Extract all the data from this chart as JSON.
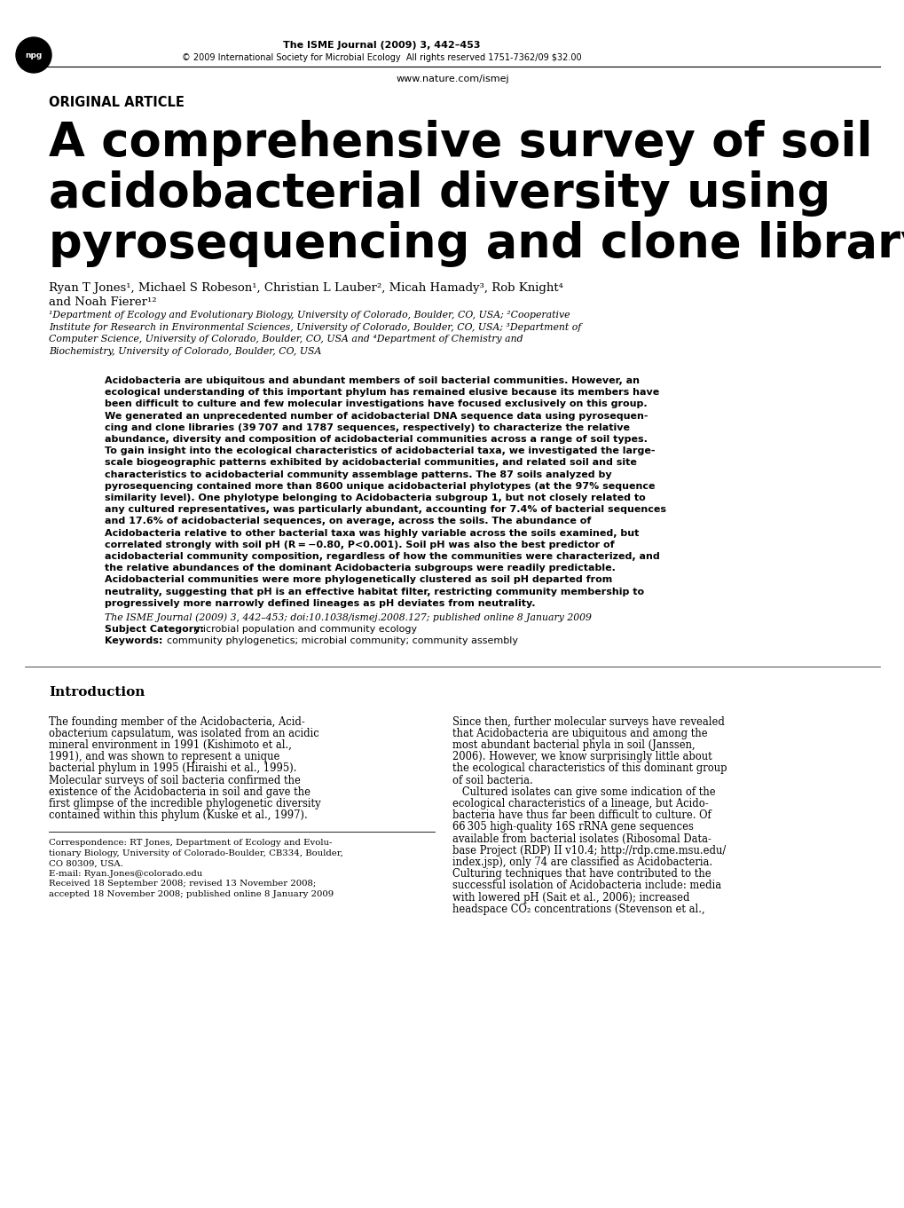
{
  "background_color": "#ffffff",
  "header_journal": "The ISME Journal (2009) 3, 442–453",
  "header_copyright": "© 2009 International Society for Microbial Ecology  All rights reserved 1751-7362/09 $32.00",
  "header_url": "www.nature.com/ismej",
  "section_label": "ORIGINAL ARTICLE",
  "title_line1": "A comprehensive survey of soil",
  "title_line2": "acidobacterial diversity using",
  "title_line3": "pyrosequencing and clone library analyses",
  "authors": "Ryan T Jones¹, Michael S Robeson¹, Christian L Lauber², Micah Hamady³, Rob Knight⁴",
  "authors2": "and Noah Fierer¹²",
  "affil_lines": [
    "¹Department of Ecology and Evolutionary Biology, University of Colorado, Boulder, CO, USA; ²Cooperative",
    "Institute for Research in Environmental Sciences, University of Colorado, Boulder, CO, USA; ³Department of",
    "Computer Science, University of Colorado, Boulder, CO, USA and ⁴Department of Chemistry and",
    "Biochemistry, University of Colorado, Boulder, CO, USA"
  ],
  "abstract_lines": [
    "Acidobacteria are ubiquitous and abundant members of soil bacterial communities. However, an",
    "ecological understanding of this important phylum has remained elusive because its members have",
    "been difficult to culture and few molecular investigations have focused exclusively on this group.",
    "We generated an unprecedented number of acidobacterial DNA sequence data using pyrosequen-",
    "cing and clone libraries (39 707 and 1787 sequences, respectively) to characterize the relative",
    "abundance, diversity and composition of acidobacterial communities across a range of soil types.",
    "To gain insight into the ecological characteristics of acidobacterial taxa, we investigated the large-",
    "scale biogeographic patterns exhibited by acidobacterial communities, and related soil and site",
    "characteristics to acidobacterial community assemblage patterns. The 87 soils analyzed by",
    "pyrosequencing contained more than 8600 unique acidobacterial phylotypes (at the 97% sequence",
    "similarity level). One phylotype belonging to Acidobacteria subgroup 1, but not closely related to",
    "any cultured representatives, was particularly abundant, accounting for 7.4% of bacterial sequences",
    "and 17.6% of acidobacterial sequences, on average, across the soils. The abundance of",
    "Acidobacteria relative to other bacterial taxa was highly variable across the soils examined, but",
    "correlated strongly with soil pH (R = −0.80, P<0.001). Soil pH was also the best predictor of",
    "acidobacterial community composition, regardless of how the communities were characterized, and",
    "the relative abundances of the dominant Acidobacteria subgroups were readily predictable.",
    "Acidobacterial communities were more phylogenetically clustered as soil pH departed from",
    "neutrality, suggesting that pH is an effective habitat filter, restricting community membership to",
    "progressively more narrowly defined lineages as pH deviates from neutrality."
  ],
  "citation_line": "The ISME Journal (2009) 3, 442–453; doi:10.1038/ismej.2008.127; published online 8 January 2009",
  "subject_label": "Subject Category:",
  "subject_rest": "  microbial population and community ecology",
  "keywords_label": "Keywords:",
  "keywords_rest": "  community phylogenetics; microbial community; community assembly",
  "intro_heading": "Introduction",
  "col1_lines": [
    "The founding member of the Acidobacteria, ​Acid-",
    "obacterium capsulatum​, was isolated from an acidic",
    "mineral environment in 1991 (Kishimoto ​et al.​,",
    "1991), and was shown to represent a unique",
    "bacterial phylum in 1995 (Hiraishi ​et al.​, 1995).",
    "Molecular surveys of soil bacteria confirmed the",
    "existence of the Acidobacteria in soil and gave the",
    "first glimpse of the incredible phylogenetic diversity",
    "contained within this phylum (Kuske ​et al.​, 1997)."
  ],
  "col2_lines": [
    "Since then, further molecular surveys have revealed",
    "that Acidobacteria are ubiquitous and among the",
    "most abundant bacterial phyla in soil (Janssen,",
    "2006). However, we know surprisingly little about",
    "the ecological characteristics of this dominant group",
    "of soil bacteria.",
    "   Cultured isolates can give some indication of the",
    "ecological characteristics of a lineage, but Acido-",
    "bacteria have thus far been difficult to culture. Of",
    "66 305 high-quality 16S rRNA gene sequences",
    "available from bacterial isolates (Ribosomal Data-",
    "base Project (RDP) II v10.4; http://rdp.cme.msu.edu/",
    "index.jsp), only 74 are classified as Acidobacteria.",
    "Culturing techniques that have contributed to the",
    "successful isolation of Acidobacteria include: media",
    "with lowered pH (Sait ​et al.​, 2006); increased",
    "headspace CO₂ concentrations (Stevenson ​et al.​,"
  ],
  "corr_lines": [
    "Correspondence: RT Jones, Department of Ecology and Evolu-",
    "tionary Biology, University of Colorado-Boulder, CB334, Boulder,",
    "CO 80309, USA.",
    "E-mail: Ryan.Jones@colorado.edu",
    "Received 18 September 2008; revised 13 November 2008;",
    "accepted 18 November 2008; published online 8 January 2009"
  ]
}
